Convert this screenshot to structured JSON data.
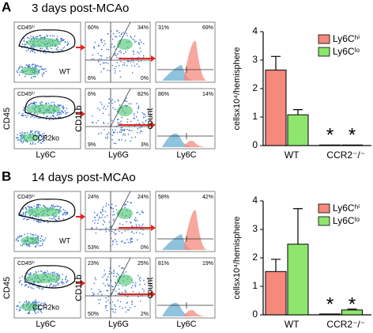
{
  "panels": [
    {
      "label": "A",
      "title": "3 days post-MCAo",
      "rows": [
        {
          "gate": "CD45ʰⁱ",
          "genotype": "WT",
          "quadrants": [
            "60%",
            "34%",
            "6%",
            "0%"
          ],
          "histogram": [
            "31%",
            "69%"
          ]
        },
        {
          "gate": "CD45ʰⁱ",
          "genotype": "CCR2ko",
          "quadrants": [
            "6%",
            "82%",
            "9%",
            "3%"
          ],
          "histogram": [
            "86%",
            "14%"
          ]
        }
      ],
      "axes": {
        "cd45": "CD45",
        "ly6c": "Ly6C",
        "cd11b": "CD11b",
        "ly6g": "Ly6G",
        "count": "count",
        "hist_x": "Ly6C"
      }
    },
    {
      "label": "B",
      "title": "14 days post-MCAo",
      "rows": [
        {
          "gate": "CD45ʰⁱ",
          "genotype": "WT",
          "quadrants": [
            "24%",
            "24%",
            "53%",
            "0%"
          ],
          "histogram": [
            "58%",
            "42%"
          ]
        },
        {
          "gate": "CD45ʰⁱ",
          "genotype": "CCR2ko",
          "quadrants": [
            "23%",
            "25%",
            "50%",
            "2%"
          ],
          "histogram": [
            "81%",
            "19%"
          ]
        }
      ],
      "axes": {
        "cd45": "CD45",
        "ly6c": "Ly6C",
        "cd11b": "CD11b",
        "ly6g": "Ly6G",
        "count": "count",
        "hist_x": "Ly6C"
      }
    }
  ],
  "chart_data": [
    {
      "type": "bar",
      "y_label": "cellsx10⁴/hemisphere",
      "categories": [
        "WT",
        "CCR2⁻/⁻"
      ],
      "series": [
        {
          "name": "Ly6Cʰⁱ",
          "color": "#f4897c",
          "values": [
            2.65,
            0.02
          ],
          "errors": [
            0.48,
            null
          ]
        },
        {
          "name": "Ly6Cˡᵒ",
          "color": "#8ee66e",
          "values": [
            1.08,
            0.02
          ],
          "errors": [
            0.18,
            null
          ]
        }
      ],
      "annotations": [
        "*",
        "*"
      ],
      "ylim": [
        0,
        4
      ],
      "yticks": [
        0,
        1,
        2,
        3,
        4
      ],
      "legend": "top-right"
    },
    {
      "type": "bar",
      "y_label": "cellsx10⁴/hemisphere",
      "categories": [
        "WT",
        "CCR2⁻/⁻"
      ],
      "series": [
        {
          "name": "Ly6Cʰⁱ",
          "color": "#f4897c",
          "values": [
            1.52,
            0.03
          ],
          "errors": [
            0.43,
            null
          ]
        },
        {
          "name": "Ly6Cˡᵒ",
          "color": "#8ee66e",
          "values": [
            2.48,
            0.17
          ],
          "errors": [
            1.25,
            0.03
          ]
        }
      ],
      "annotations": [
        "*",
        "*"
      ],
      "ylim": [
        0,
        4
      ],
      "yticks": [
        0,
        1,
        2,
        3,
        4
      ],
      "legend": "top-right"
    }
  ]
}
